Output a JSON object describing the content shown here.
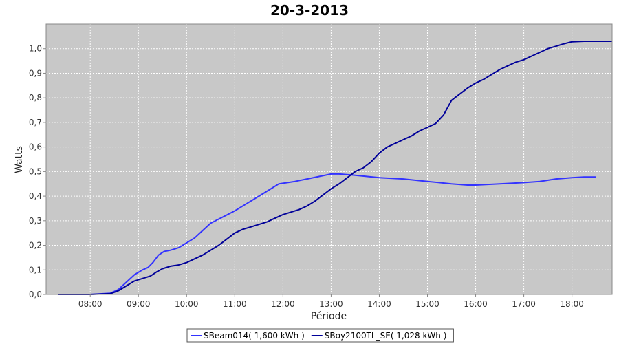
{
  "chart_data": {
    "type": "line",
    "title": "20-3-2013",
    "xlabel": "Période",
    "ylabel": "Watts",
    "xlim": [
      "07:05",
      "18:50"
    ],
    "ylim": [
      0,
      1.1
    ],
    "x_ticks": [
      "08:00",
      "09:00",
      "10:00",
      "11:00",
      "12:00",
      "13:00",
      "14:00",
      "15:00",
      "16:00",
      "17:00",
      "18:00"
    ],
    "y_ticks": [
      "0,0",
      "0,1",
      "0,2",
      "0,3",
      "0,4",
      "0,5",
      "0,6",
      "0,7",
      "0,8",
      "0,9",
      "1,0"
    ],
    "grid": true,
    "plot_background": "#c8c8c8",
    "legend_position": "bottom",
    "series": [
      {
        "name": "SBeam014( 1,600 kWh )",
        "color": "#3333ff",
        "points": [
          [
            "07:20",
            0.0
          ],
          [
            "08:00",
            0.0
          ],
          [
            "08:25",
            0.005
          ],
          [
            "08:35",
            0.02
          ],
          [
            "08:45",
            0.05
          ],
          [
            "08:55",
            0.08
          ],
          [
            "09:05",
            0.1
          ],
          [
            "09:12",
            0.11
          ],
          [
            "09:18",
            0.13
          ],
          [
            "09:25",
            0.16
          ],
          [
            "09:32",
            0.175
          ],
          [
            "09:40",
            0.18
          ],
          [
            "09:50",
            0.19
          ],
          [
            "10:00",
            0.21
          ],
          [
            "10:10",
            0.23
          ],
          [
            "10:20",
            0.26
          ],
          [
            "10:30",
            0.29
          ],
          [
            "10:45",
            0.315
          ],
          [
            "11:00",
            0.34
          ],
          [
            "11:15",
            0.37
          ],
          [
            "11:30",
            0.4
          ],
          [
            "11:45",
            0.43
          ],
          [
            "11:55",
            0.45
          ],
          [
            "12:15",
            0.46
          ],
          [
            "12:30",
            0.47
          ],
          [
            "12:45",
            0.48
          ],
          [
            "13:00",
            0.49
          ],
          [
            "13:10",
            0.49
          ],
          [
            "13:30",
            0.485
          ],
          [
            "14:00",
            0.475
          ],
          [
            "14:30",
            0.47
          ],
          [
            "15:00",
            0.46
          ],
          [
            "15:30",
            0.45
          ],
          [
            "15:50",
            0.445
          ],
          [
            "16:00",
            0.445
          ],
          [
            "16:30",
            0.45
          ],
          [
            "17:00",
            0.455
          ],
          [
            "17:20",
            0.46
          ],
          [
            "17:40",
            0.47
          ],
          [
            "18:00",
            0.475
          ],
          [
            "18:15",
            0.478
          ],
          [
            "18:30",
            0.478
          ]
        ]
      },
      {
        "name": "SBoy2100TL_SE( 1,028 kWh )",
        "color": "#000099",
        "points": [
          [
            "07:20",
            0.0
          ],
          [
            "08:00",
            0.0
          ],
          [
            "08:25",
            0.003
          ],
          [
            "08:35",
            0.015
          ],
          [
            "08:45",
            0.035
          ],
          [
            "08:55",
            0.055
          ],
          [
            "09:05",
            0.065
          ],
          [
            "09:15",
            0.075
          ],
          [
            "09:22",
            0.09
          ],
          [
            "09:30",
            0.105
          ],
          [
            "09:40",
            0.115
          ],
          [
            "09:50",
            0.12
          ],
          [
            "10:00",
            0.13
          ],
          [
            "10:10",
            0.145
          ],
          [
            "10:20",
            0.16
          ],
          [
            "10:30",
            0.18
          ],
          [
            "10:40",
            0.2
          ],
          [
            "10:50",
            0.225
          ],
          [
            "11:00",
            0.25
          ],
          [
            "11:10",
            0.265
          ],
          [
            "11:20",
            0.275
          ],
          [
            "11:30",
            0.285
          ],
          [
            "11:40",
            0.295
          ],
          [
            "11:50",
            0.31
          ],
          [
            "12:00",
            0.325
          ],
          [
            "12:10",
            0.335
          ],
          [
            "12:20",
            0.345
          ],
          [
            "12:30",
            0.36
          ],
          [
            "12:40",
            0.38
          ],
          [
            "12:50",
            0.405
          ],
          [
            "13:00",
            0.43
          ],
          [
            "13:10",
            0.45
          ],
          [
            "13:20",
            0.475
          ],
          [
            "13:30",
            0.5
          ],
          [
            "13:40",
            0.515
          ],
          [
            "13:50",
            0.54
          ],
          [
            "14:00",
            0.575
          ],
          [
            "14:10",
            0.6
          ],
          [
            "14:20",
            0.615
          ],
          [
            "14:30",
            0.63
          ],
          [
            "14:40",
            0.645
          ],
          [
            "14:50",
            0.665
          ],
          [
            "15:00",
            0.68
          ],
          [
            "15:10",
            0.695
          ],
          [
            "15:20",
            0.73
          ],
          [
            "15:25",
            0.76
          ],
          [
            "15:30",
            0.79
          ],
          [
            "15:40",
            0.815
          ],
          [
            "15:50",
            0.84
          ],
          [
            "16:00",
            0.86
          ],
          [
            "16:10",
            0.875
          ],
          [
            "16:20",
            0.895
          ],
          [
            "16:30",
            0.915
          ],
          [
            "16:40",
            0.93
          ],
          [
            "16:50",
            0.945
          ],
          [
            "17:00",
            0.955
          ],
          [
            "17:10",
            0.97
          ],
          [
            "17:20",
            0.985
          ],
          [
            "17:30",
            1.0
          ],
          [
            "17:40",
            1.01
          ],
          [
            "17:50",
            1.02
          ],
          [
            "18:00",
            1.028
          ],
          [
            "18:15",
            1.03
          ],
          [
            "18:30",
            1.03
          ],
          [
            "18:45",
            1.03
          ],
          [
            "18:50",
            1.03
          ]
        ]
      }
    ]
  }
}
